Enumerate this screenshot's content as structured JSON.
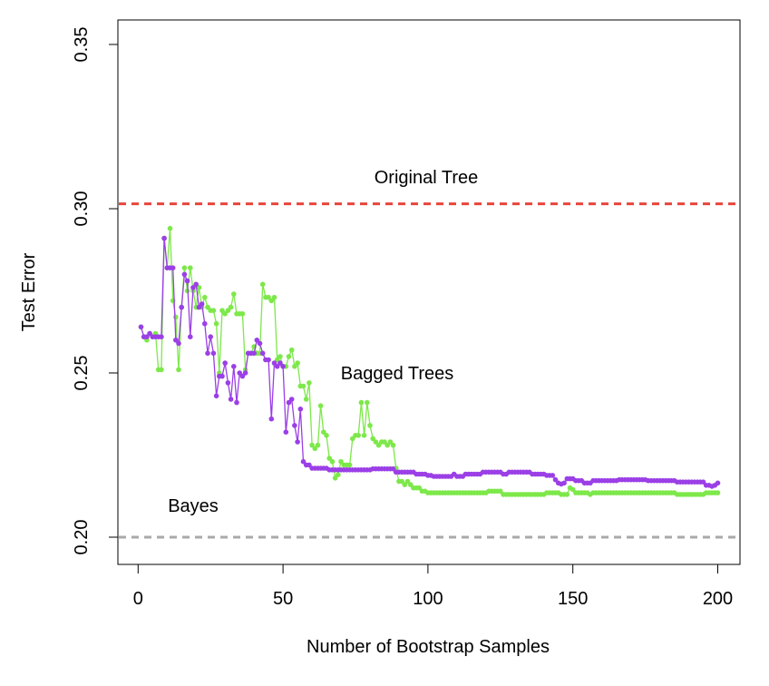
{
  "chart_data": {
    "type": "line",
    "xlabel": "Number of Bootstrap Samples",
    "ylabel": "Test Error",
    "xlim": [
      -4,
      206
    ],
    "ylim": [
      0.194,
      0.356
    ],
    "xticks": [
      0,
      50,
      100,
      150,
      200
    ],
    "xtick_labels": [
      "0",
      "50",
      "100",
      "150",
      "200"
    ],
    "yticks": [
      0.2,
      0.25,
      0.3,
      0.35
    ],
    "ytick_labels": [
      "0.20",
      "0.25",
      "0.30",
      "0.35"
    ],
    "grid": false,
    "reference_lines": [
      {
        "label": "Original Tree",
        "y": 0.3015,
        "color": "#e8453c",
        "style": "dashed"
      },
      {
        "label": "Bayes",
        "y": 0.2,
        "color": "#a9a9a9",
        "style": "dashed"
      }
    ],
    "annotations": [
      {
        "text": "Original Tree",
        "x": 100,
        "y": 0.31
      },
      {
        "text": "Bagged Trees",
        "x": 90,
        "y": 0.25
      },
      {
        "text": "Bayes",
        "x": 20,
        "y": 0.2095
      }
    ],
    "series": [
      {
        "color": "#7de84a",
        "anchors": [
          [
            1,
            0.264
          ],
          [
            2,
            0.261
          ],
          [
            3,
            0.26
          ],
          [
            4,
            0.262
          ],
          [
            5,
            0.261
          ],
          [
            6,
            0.262
          ],
          [
            7,
            0.251
          ],
          [
            8,
            0.251
          ],
          [
            9,
            0.291
          ],
          [
            10,
            0.282
          ],
          [
            11,
            0.294
          ],
          [
            12,
            0.272
          ],
          [
            13,
            0.267
          ],
          [
            14,
            0.251
          ],
          [
            15,
            0.27
          ],
          [
            16,
            0.282
          ],
          [
            17,
            0.275
          ],
          [
            18,
            0.282
          ],
          [
            19,
            0.275
          ],
          [
            20,
            0.27
          ],
          [
            21,
            0.276
          ],
          [
            22,
            0.27
          ],
          [
            23,
            0.273
          ],
          [
            24,
            0.27
          ],
          [
            25,
            0.269
          ],
          [
            26,
            0.269
          ],
          [
            27,
            0.265
          ],
          [
            28,
            0.25
          ],
          [
            29,
            0.269
          ],
          [
            30,
            0.268
          ],
          [
            31,
            0.269
          ],
          [
            32,
            0.27
          ],
          [
            33,
            0.274
          ],
          [
            34,
            0.268
          ],
          [
            35,
            0.268
          ],
          [
            36,
            0.268
          ],
          [
            37,
            0.251
          ],
          [
            38,
            0.256
          ],
          [
            39,
            0.256
          ],
          [
            40,
            0.258
          ],
          [
            41,
            0.256
          ],
          [
            42,
            0.256
          ],
          [
            43,
            0.277
          ],
          [
            44,
            0.273
          ],
          [
            45,
            0.273
          ],
          [
            46,
            0.272
          ],
          [
            47,
            0.273
          ],
          [
            48,
            0.254
          ],
          [
            49,
            0.255
          ],
          [
            50,
            0.252
          ],
          [
            51,
            0.252
          ],
          [
            52,
            0.255
          ],
          [
            53,
            0.257
          ],
          [
            54,
            0.252
          ],
          [
            55,
            0.253
          ],
          [
            56,
            0.246
          ],
          [
            57,
            0.246
          ],
          [
            58,
            0.242
          ],
          [
            59,
            0.247
          ],
          [
            60,
            0.228
          ],
          [
            61,
            0.227
          ],
          [
            62,
            0.228
          ],
          [
            63,
            0.24
          ],
          [
            64,
            0.232
          ],
          [
            65,
            0.231
          ],
          [
            66,
            0.224
          ],
          [
            67,
            0.223
          ],
          [
            68,
            0.218
          ],
          [
            69,
            0.219
          ],
          [
            70,
            0.223
          ],
          [
            71,
            0.222
          ],
          [
            72,
            0.222
          ],
          [
            73,
            0.222
          ],
          [
            74,
            0.23
          ],
          [
            75,
            0.231
          ],
          [
            76,
            0.231
          ],
          [
            77,
            0.241
          ],
          [
            78,
            0.231
          ],
          [
            79,
            0.241
          ],
          [
            80,
            0.234
          ],
          [
            81,
            0.23
          ],
          [
            82,
            0.229
          ],
          [
            83,
            0.228
          ],
          [
            84,
            0.229
          ],
          [
            85,
            0.229
          ],
          [
            86,
            0.228
          ],
          [
            87,
            0.229
          ],
          [
            88,
            0.228
          ],
          [
            89,
            0.221
          ],
          [
            90,
            0.217
          ],
          [
            91,
            0.217
          ],
          [
            92,
            0.216
          ],
          [
            93,
            0.217
          ],
          [
            94,
            0.216
          ],
          [
            95,
            0.215
          ],
          [
            96,
            0.215
          ],
          [
            98,
            0.214
          ],
          [
            100,
            0.2135
          ],
          [
            120,
            0.2135
          ],
          [
            121,
            0.214
          ],
          [
            125,
            0.214
          ],
          [
            126,
            0.213
          ],
          [
            140,
            0.213
          ],
          [
            141,
            0.2135
          ],
          [
            145,
            0.2135
          ],
          [
            146,
            0.213
          ],
          [
            148,
            0.213
          ],
          [
            149,
            0.215
          ],
          [
            150,
            0.2145
          ],
          [
            151,
            0.2135
          ],
          [
            155,
            0.2135
          ],
          [
            156,
            0.213
          ],
          [
            157,
            0.2135
          ],
          [
            185,
            0.2135
          ],
          [
            186,
            0.213
          ],
          [
            195,
            0.213
          ],
          [
            196,
            0.2135
          ],
          [
            200,
            0.2135
          ]
        ]
      },
      {
        "color": "#9b3fe6",
        "anchors": [
          [
            1,
            0.264
          ],
          [
            2,
            0.261
          ],
          [
            3,
            0.261
          ],
          [
            4,
            0.262
          ],
          [
            5,
            0.261
          ],
          [
            6,
            0.261
          ],
          [
            7,
            0.261
          ],
          [
            8,
            0.261
          ],
          [
            9,
            0.291
          ],
          [
            10,
            0.282
          ],
          [
            11,
            0.282
          ],
          [
            12,
            0.282
          ],
          [
            13,
            0.26
          ],
          [
            14,
            0.259
          ],
          [
            15,
            0.27
          ],
          [
            16,
            0.28
          ],
          [
            17,
            0.278
          ],
          [
            18,
            0.261
          ],
          [
            19,
            0.276
          ],
          [
            20,
            0.277
          ],
          [
            21,
            0.27
          ],
          [
            22,
            0.271
          ],
          [
            23,
            0.265
          ],
          [
            24,
            0.256
          ],
          [
            25,
            0.261
          ],
          [
            26,
            0.256
          ],
          [
            27,
            0.243
          ],
          [
            28,
            0.249
          ],
          [
            29,
            0.249
          ],
          [
            30,
            0.253
          ],
          [
            31,
            0.247
          ],
          [
            32,
            0.242
          ],
          [
            33,
            0.252
          ],
          [
            34,
            0.241
          ],
          [
            35,
            0.25
          ],
          [
            36,
            0.249
          ],
          [
            37,
            0.25
          ],
          [
            38,
            0.256
          ],
          [
            39,
            0.256
          ],
          [
            40,
            0.256
          ],
          [
            41,
            0.26
          ],
          [
            42,
            0.259
          ],
          [
            43,
            0.256
          ],
          [
            44,
            0.254
          ],
          [
            45,
            0.254
          ],
          [
            46,
            0.236
          ],
          [
            47,
            0.253
          ],
          [
            48,
            0.252
          ],
          [
            49,
            0.253
          ],
          [
            50,
            0.252
          ],
          [
            51,
            0.232
          ],
          [
            52,
            0.241
          ],
          [
            53,
            0.242
          ],
          [
            54,
            0.234
          ],
          [
            55,
            0.229
          ],
          [
            56,
            0.239
          ],
          [
            57,
            0.223
          ],
          [
            58,
            0.222
          ],
          [
            59,
            0.222
          ],
          [
            60,
            0.221
          ],
          [
            65,
            0.221
          ],
          [
            66,
            0.2205
          ],
          [
            80,
            0.2205
          ],
          [
            81,
            0.2208
          ],
          [
            88,
            0.2208
          ],
          [
            89,
            0.2198
          ],
          [
            95,
            0.2198
          ],
          [
            96,
            0.2192
          ],
          [
            100,
            0.2188
          ],
          [
            102,
            0.2185
          ],
          [
            108,
            0.2185
          ],
          [
            109,
            0.2192
          ],
          [
            110,
            0.2185
          ],
          [
            113,
            0.2192
          ],
          [
            118,
            0.2192
          ],
          [
            119,
            0.2198
          ],
          [
            125,
            0.2198
          ],
          [
            126,
            0.2192
          ],
          [
            128,
            0.2198
          ],
          [
            135,
            0.2198
          ],
          [
            136,
            0.2192
          ],
          [
            140,
            0.2192
          ],
          [
            141,
            0.2188
          ],
          [
            143,
            0.2188
          ],
          [
            144,
            0.2175
          ],
          [
            145,
            0.2165
          ],
          [
            146,
            0.2162
          ],
          [
            147,
            0.2165
          ],
          [
            148,
            0.2178
          ],
          [
            150,
            0.2178
          ],
          [
            151,
            0.2172
          ],
          [
            153,
            0.2172
          ],
          [
            154,
            0.2165
          ],
          [
            156,
            0.2165
          ],
          [
            157,
            0.2172
          ],
          [
            165,
            0.2172
          ],
          [
            166,
            0.2175
          ],
          [
            175,
            0.2175
          ],
          [
            176,
            0.2172
          ],
          [
            185,
            0.2172
          ],
          [
            186,
            0.2168
          ],
          [
            195,
            0.2168
          ],
          [
            196,
            0.2158
          ],
          [
            198,
            0.2155
          ],
          [
            199,
            0.2158
          ],
          [
            200,
            0.2165
          ]
        ]
      }
    ]
  }
}
